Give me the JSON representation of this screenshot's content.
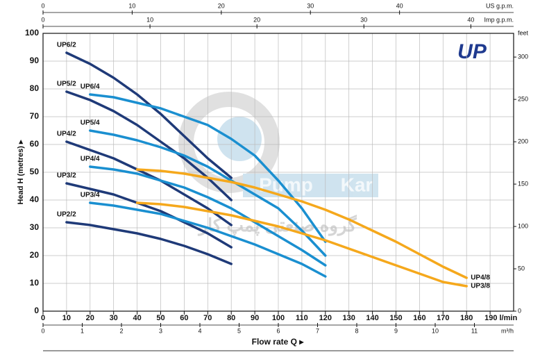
{
  "chart_data": {
    "type": "line",
    "logo": "UP",
    "watermark": [
      "Pump",
      "Kar",
      "گروه صنعتی پمپ کار"
    ],
    "ylabel": "Head H (metres) ▸",
    "xlabel": "Flow rate Q ▸",
    "x": [
      10,
      20,
      30,
      40,
      50,
      60,
      70,
      80,
      90,
      100,
      110,
      120,
      130,
      140,
      150,
      160,
      170,
      180
    ],
    "xlim": [
      0,
      200
    ],
    "xticks": [
      0,
      10,
      20,
      30,
      40,
      50,
      60,
      70,
      80,
      90,
      100,
      110,
      120,
      130,
      140,
      150,
      160,
      170,
      180,
      {
        "value": 190,
        "label": "190 l/min"
      }
    ],
    "ylim": [
      0,
      100
    ],
    "yticks": [
      0,
      10,
      20,
      30,
      40,
      50,
      60,
      70,
      80,
      90,
      100
    ],
    "grid": true,
    "y2label": "feet",
    "y2lim": [
      0,
      328
    ],
    "y2ticks": [
      0,
      50,
      100,
      150,
      200,
      250,
      300
    ],
    "top_axes": [
      {
        "label": "US g.p.m.",
        "xlim": [
          0,
          52.8
        ],
        "xticks": [
          0,
          10,
          20,
          30,
          40
        ]
      },
      {
        "label": "Imp g.p.m.",
        "xlim": [
          0,
          44
        ],
        "xticks": [
          0,
          10,
          20,
          30,
          40
        ]
      }
    ],
    "bottom_axis": {
      "label": "m³/h",
      "xlim": [
        0,
        12
      ],
      "xticks": [
        0,
        1,
        2,
        3,
        4,
        5,
        6,
        7,
        8,
        9,
        10,
        11
      ]
    },
    "series": [
      {
        "name": "UP6/2",
        "color": "#1f3a78",
        "values": [
          93,
          89,
          84,
          78,
          71,
          63,
          55,
          48,
          null,
          null,
          null,
          null,
          null,
          null,
          null,
          null,
          null,
          null
        ]
      },
      {
        "name": "UP5/2",
        "color": "#1f3a78",
        "values": [
          79,
          76,
          72,
          67,
          61,
          55,
          48,
          40,
          null,
          null,
          null,
          null,
          null,
          null,
          null,
          null,
          null,
          null
        ]
      },
      {
        "name": "UP4/2",
        "color": "#1f3a78",
        "values": [
          61,
          58,
          55,
          51,
          47,
          42,
          37,
          31,
          null,
          null,
          null,
          null,
          null,
          null,
          null,
          null,
          null,
          null
        ]
      },
      {
        "name": "UP3/2",
        "color": "#1f3a78",
        "values": [
          46,
          44,
          42,
          39,
          36,
          32,
          28,
          23,
          null,
          null,
          null,
          null,
          null,
          null,
          null,
          null,
          null,
          null
        ]
      },
      {
        "name": "UP2/2",
        "color": "#1f3a78",
        "values": [
          32,
          31,
          29.5,
          28,
          26,
          23.5,
          20.5,
          17,
          null,
          null,
          null,
          null,
          null,
          null,
          null,
          null,
          null,
          null
        ]
      },
      {
        "name": "UP6/4",
        "color": "#1a8fd0",
        "values": [
          null,
          78,
          77,
          75,
          73,
          70,
          67,
          62,
          56,
          47,
          37,
          25,
          null,
          null,
          null,
          null,
          null,
          null
        ]
      },
      {
        "name": "UP5/4",
        "color": "#1a8fd0",
        "values": [
          null,
          65,
          63.5,
          61.5,
          59,
          56,
          52,
          47,
          42,
          37,
          29,
          20,
          null,
          null,
          null,
          null,
          null,
          null
        ]
      },
      {
        "name": "UP4/4",
        "color": "#1a8fd0",
        "values": [
          null,
          52,
          51,
          49.5,
          47,
          44.5,
          41,
          37,
          32,
          27,
          22,
          16.5,
          null,
          null,
          null,
          null,
          null,
          null
        ]
      },
      {
        "name": "UP3/4",
        "color": "#1a8fd0",
        "values": [
          null,
          39,
          38,
          36.5,
          35,
          32.5,
          30,
          27,
          24,
          20.5,
          17,
          12.5,
          null,
          null,
          null,
          null,
          null,
          null
        ]
      },
      {
        "name": "UP4/8",
        "color": "#f5a81c",
        "values": [
          null,
          null,
          null,
          51,
          50.5,
          49.5,
          48,
          46.5,
          44.5,
          42,
          39.5,
          36.5,
          33,
          29,
          25,
          20.5,
          16,
          12
        ]
      },
      {
        "name": "UP3/8",
        "color": "#f5a81c",
        "values": [
          null,
          null,
          null,
          39,
          38.5,
          37.5,
          36,
          34.5,
          32.5,
          30.5,
          28,
          25.5,
          22.5,
          19.5,
          16.5,
          13.5,
          10.5,
          9
        ]
      }
    ]
  }
}
